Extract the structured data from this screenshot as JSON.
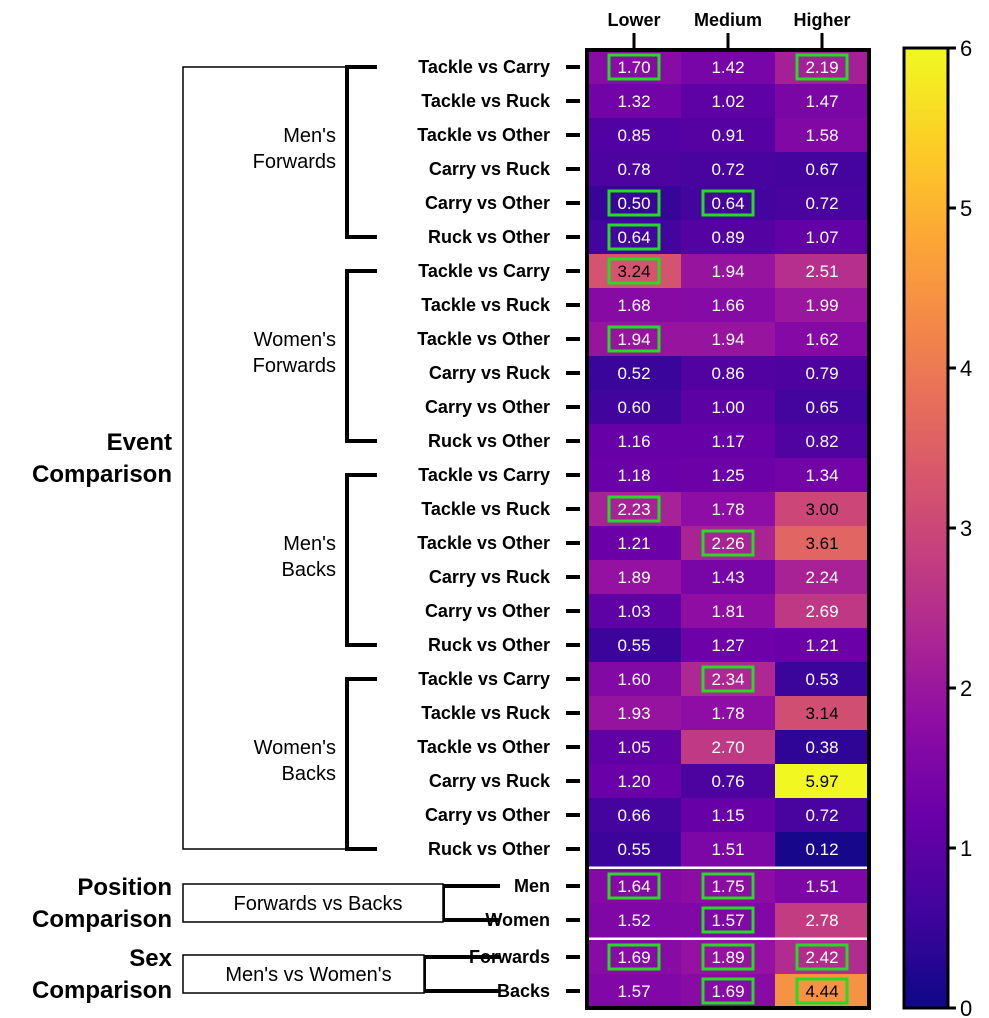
{
  "chart_data": {
    "type": "heatmap",
    "columns": [
      "Lower",
      "Medium",
      "Higher"
    ],
    "colorbar": {
      "min": 0,
      "max": 6,
      "ticks": [
        "0",
        "1",
        "2",
        "3",
        "4",
        "5",
        "6"
      ],
      "colormap": "plasma"
    },
    "highlight_color": "#22dd22",
    "sections": [
      {
        "label_lines": [
          "Event",
          "Comparison"
        ],
        "groups": [
          {
            "label_lines": [
              "Men's",
              "Forwards"
            ],
            "rows": [
              {
                "label": "Tackle vs Carry",
                "values": [
                  1.7,
                  1.42,
                  2.19
                ],
                "display": [
                  "1.70",
                  "1.42",
                  "2.19"
                ],
                "highlight": [
                  true,
                  false,
                  true
                ]
              },
              {
                "label": "Tackle vs Ruck",
                "values": [
                  1.32,
                  1.02,
                  1.47
                ],
                "display": [
                  "1.32",
                  "1.02",
                  "1.47"
                ],
                "highlight": [
                  false,
                  false,
                  false
                ]
              },
              {
                "label": "Tackle vs Other",
                "values": [
                  0.85,
                  0.91,
                  1.58
                ],
                "display": [
                  "0.85",
                  "0.91",
                  "1.58"
                ],
                "highlight": [
                  false,
                  false,
                  false
                ]
              },
              {
                "label": "Carry vs Ruck",
                "values": [
                  0.78,
                  0.72,
                  0.67
                ],
                "display": [
                  "0.78",
                  "0.72",
                  "0.67"
                ],
                "highlight": [
                  false,
                  false,
                  false
                ]
              },
              {
                "label": "Carry vs Other",
                "values": [
                  0.5,
                  0.64,
                  0.72
                ],
                "display": [
                  "0.50",
                  "0.64",
                  "0.72"
                ],
                "highlight": [
                  true,
                  true,
                  false
                ]
              },
              {
                "label": "Ruck vs Other",
                "values": [
                  0.64,
                  0.89,
                  1.07
                ],
                "display": [
                  "0.64",
                  "0.89",
                  "1.07"
                ],
                "highlight": [
                  true,
                  false,
                  false
                ]
              }
            ]
          },
          {
            "label_lines": [
              "Women's",
              "Forwards"
            ],
            "rows": [
              {
                "label": "Tackle vs Carry",
                "values": [
                  3.24,
                  1.94,
                  2.51
                ],
                "display": [
                  "3.24",
                  "1.94",
                  "2.51"
                ],
                "highlight": [
                  true,
                  false,
                  false
                ]
              },
              {
                "label": "Tackle vs Ruck",
                "values": [
                  1.68,
                  1.66,
                  1.99
                ],
                "display": [
                  "1.68",
                  "1.66",
                  "1.99"
                ],
                "highlight": [
                  false,
                  false,
                  false
                ]
              },
              {
                "label": "Tackle vs Other",
                "values": [
                  1.94,
                  1.94,
                  1.62
                ],
                "display": [
                  "1.94",
                  "1.94",
                  "1.62"
                ],
                "highlight": [
                  true,
                  false,
                  false
                ]
              },
              {
                "label": "Carry vs Ruck",
                "values": [
                  0.52,
                  0.86,
                  0.79
                ],
                "display": [
                  "0.52",
                  "0.86",
                  "0.79"
                ],
                "highlight": [
                  false,
                  false,
                  false
                ]
              },
              {
                "label": "Carry vs Other",
                "values": [
                  0.6,
                  1.0,
                  0.65
                ],
                "display": [
                  "0.60",
                  "1.00",
                  "0.65"
                ],
                "highlight": [
                  false,
                  false,
                  false
                ]
              },
              {
                "label": "Ruck vs Other",
                "values": [
                  1.16,
                  1.17,
                  0.82
                ],
                "display": [
                  "1.16",
                  "1.17",
                  "0.82"
                ],
                "highlight": [
                  false,
                  false,
                  false
                ]
              }
            ]
          },
          {
            "label_lines": [
              "Men's",
              "Backs"
            ],
            "rows": [
              {
                "label": "Tackle vs Carry",
                "values": [
                  1.18,
                  1.25,
                  1.34
                ],
                "display": [
                  "1.18",
                  "1.25",
                  "1.34"
                ],
                "highlight": [
                  false,
                  false,
                  false
                ]
              },
              {
                "label": "Tackle vs Ruck",
                "values": [
                  2.23,
                  1.78,
                  3.0
                ],
                "display": [
                  "2.23",
                  "1.78",
                  "3.00"
                ],
                "highlight": [
                  true,
                  false,
                  false
                ]
              },
              {
                "label": "Tackle vs Other",
                "values": [
                  1.21,
                  2.26,
                  3.61
                ],
                "display": [
                  "1.21",
                  "2.26",
                  "3.61"
                ],
                "highlight": [
                  false,
                  true,
                  false
                ]
              },
              {
                "label": "Carry vs Ruck",
                "values": [
                  1.89,
                  1.43,
                  2.24
                ],
                "display": [
                  "1.89",
                  "1.43",
                  "2.24"
                ],
                "highlight": [
                  false,
                  false,
                  false
                ]
              },
              {
                "label": "Carry vs Other",
                "values": [
                  1.03,
                  1.81,
                  2.69
                ],
                "display": [
                  "1.03",
                  "1.81",
                  "2.69"
                ],
                "highlight": [
                  false,
                  false,
                  false
                ]
              },
              {
                "label": "Ruck vs Other",
                "values": [
                  0.55,
                  1.27,
                  1.21
                ],
                "display": [
                  "0.55",
                  "1.27",
                  "1.21"
                ],
                "highlight": [
                  false,
                  false,
                  false
                ]
              }
            ]
          },
          {
            "label_lines": [
              "Women's",
              "Backs"
            ],
            "rows": [
              {
                "label": "Tackle vs Carry",
                "values": [
                  1.6,
                  2.34,
                  0.53
                ],
                "display": [
                  "1.60",
                  "2.34",
                  "0.53"
                ],
                "highlight": [
                  false,
                  true,
                  false
                ]
              },
              {
                "label": "Tackle vs Ruck",
                "values": [
                  1.93,
                  1.78,
                  3.14
                ],
                "display": [
                  "1.93",
                  "1.78",
                  "3.14"
                ],
                "highlight": [
                  false,
                  false,
                  false
                ]
              },
              {
                "label": "Tackle vs Other",
                "values": [
                  1.05,
                  2.7,
                  0.38
                ],
                "display": [
                  "1.05",
                  "2.70",
                  "0.38"
                ],
                "highlight": [
                  false,
                  false,
                  false
                ]
              },
              {
                "label": "Carry vs Ruck",
                "values": [
                  1.2,
                  0.76,
                  5.97
                ],
                "display": [
                  "1.20",
                  "0.76",
                  "5.97"
                ],
                "highlight": [
                  false,
                  false,
                  false
                ]
              },
              {
                "label": "Carry vs Other",
                "values": [
                  0.66,
                  1.15,
                  0.72
                ],
                "display": [
                  "0.66",
                  "1.15",
                  "0.72"
                ],
                "highlight": [
                  false,
                  false,
                  false
                ]
              },
              {
                "label": "Ruck vs Other",
                "values": [
                  0.55,
                  1.51,
                  0.12
                ],
                "display": [
                  "0.55",
                  "1.51",
                  "0.12"
                ],
                "highlight": [
                  false,
                  false,
                  false
                ]
              }
            ]
          }
        ]
      },
      {
        "label_lines": [
          "Position",
          "Comparison"
        ],
        "groups": [
          {
            "label_lines": [
              "Forwards vs  Backs"
            ],
            "rows": [
              {
                "label": "Men",
                "values": [
                  1.64,
                  1.75,
                  1.51
                ],
                "display": [
                  "1.64",
                  "1.75",
                  "1.51"
                ],
                "highlight": [
                  true,
                  true,
                  false
                ]
              },
              {
                "label": "Women",
                "values": [
                  1.52,
                  1.57,
                  2.78
                ],
                "display": [
                  "1.52",
                  "1.57",
                  "2.78"
                ],
                "highlight": [
                  false,
                  true,
                  false
                ]
              }
            ]
          }
        ]
      },
      {
        "label_lines": [
          "Sex",
          "Comparison"
        ],
        "groups": [
          {
            "label_lines": [
              "Men's  vs  Women's"
            ],
            "rows": [
              {
                "label": "Forwards",
                "values": [
                  1.69,
                  1.89,
                  2.42
                ],
                "display": [
                  "1.69",
                  "1.89",
                  "2.42"
                ],
                "highlight": [
                  true,
                  true,
                  true
                ]
              },
              {
                "label": "Backs",
                "values": [
                  1.57,
                  1.69,
                  4.44
                ],
                "display": [
                  "1.57",
                  "1.69",
                  "4.44"
                ],
                "highlight": [
                  false,
                  true,
                  true
                ]
              }
            ]
          }
        ]
      }
    ]
  }
}
